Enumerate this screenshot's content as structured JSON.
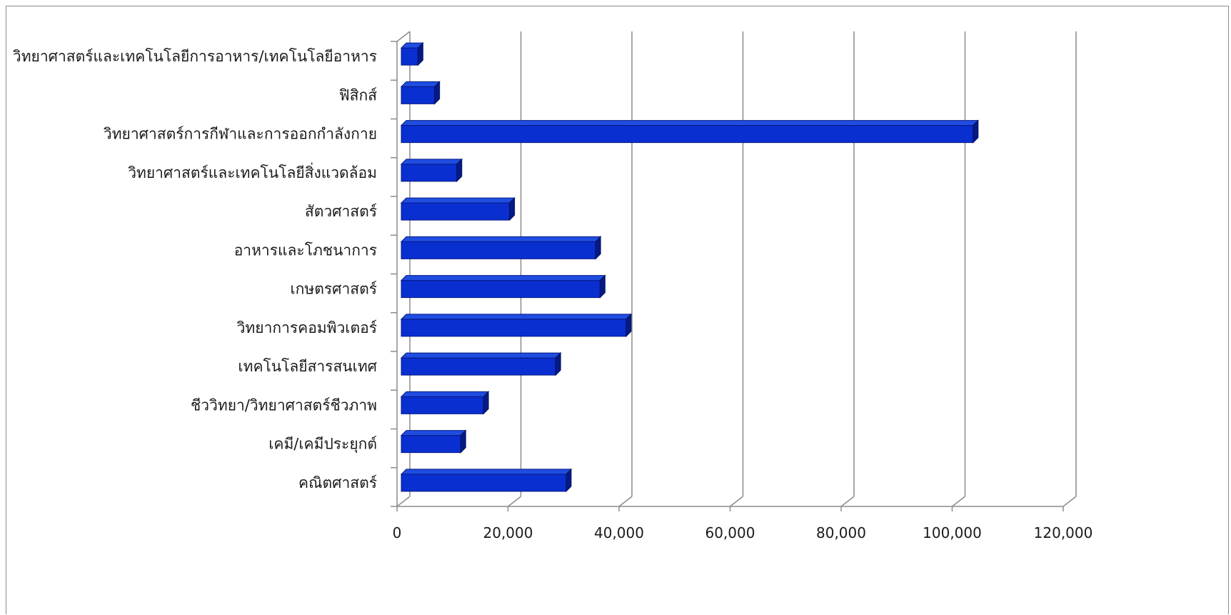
{
  "chart_data": {
    "type": "bar",
    "orientation": "horizontal",
    "style": "3d",
    "title": "",
    "xlabel": "",
    "ylabel": "",
    "xlim": [
      0,
      120000
    ],
    "x_ticks": [
      0,
      20000,
      40000,
      60000,
      80000,
      100000,
      120000
    ],
    "x_tick_labels": [
      "0",
      "20,000",
      "40,000",
      "60,000",
      "80,000",
      "100,000",
      "120,000"
    ],
    "grid": true,
    "legend": "none",
    "bar_color": "#0a2fd0",
    "categories": [
      "วิทยาศาสตร์และเทคโนโลยีการอาหาร/เทคโนโลยีอาหาร",
      "ฟิสิกส์",
      "วิทยาศาสตร์การกีฬาและการออกกำลังกาย",
      "วิทยาศาสตร์และเทคโนโลยีสิ่งแวดล้อม",
      "สัตวศาสตร์",
      "อาหารและโภชนาการ",
      "เกษตรศาสตร์",
      "วิทยาการคอมพิวเตอร์",
      "เทคโนโลยีสารสนเทศ",
      "ชีววิทยา/วิทยาศาสตร์ชีวภาพ",
      "เคมี/เคมีประยุกต์",
      "คณิตศาสตร์"
    ],
    "values": [
      3000,
      6000,
      103000,
      10000,
      19500,
      35000,
      35800,
      40500,
      27800,
      14800,
      10700,
      29700
    ]
  }
}
